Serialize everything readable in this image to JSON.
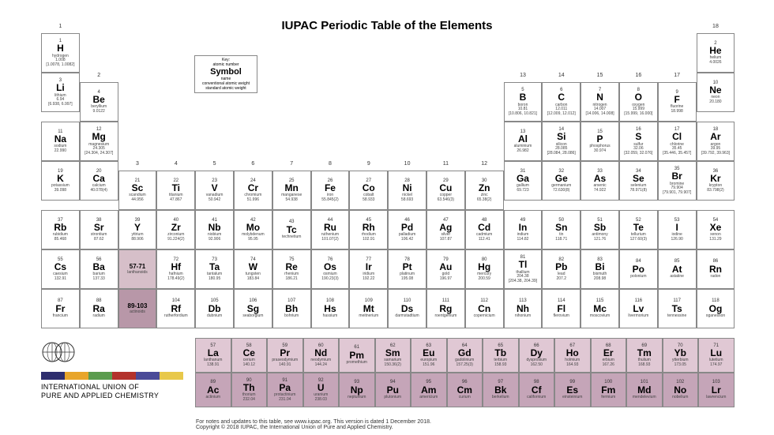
{
  "title": "IUPAC Periodic Table of the Elements",
  "key": {
    "label": "Key:",
    "line1": "atomic number",
    "symbol": "Symbol",
    "line2": "name",
    "line3": "conventional atomic weight",
    "line4": "standard atomic weight"
  },
  "palette": {
    "lan": "#d6bfc9",
    "act": "#b897a8",
    "lanrow": "#e0c8d4",
    "actrow": "#c5a5b8",
    "border": "#888888",
    "bg": "#ffffff"
  },
  "logoColors": [
    "#2e2e6e",
    "#e8a52a",
    "#5b9b4e",
    "#b3322c",
    "#4a4a98",
    "#e8c84a"
  ],
  "orgName1": "INTERNATIONAL UNION OF",
  "orgName2": "PURE AND APPLIED CHEMISTRY",
  "footer1": "For notes and updates to this table, see www.iupac.org. This version is dated 1 December 2018.",
  "footer2": "Copyright © 2018 IUPAC, the International Union of Pure and Applied Chemistry.",
  "groups": [
    1,
    2,
    3,
    4,
    5,
    6,
    7,
    8,
    9,
    10,
    11,
    12,
    13,
    14,
    15,
    16,
    17,
    18
  ],
  "elements": [
    {
      "n": 1,
      "s": "H",
      "name": "hydrogen",
      "m": "1.008",
      "m2": "[1.0078, 1.0082]",
      "r": 0,
      "c": 0
    },
    {
      "n": 2,
      "s": "He",
      "name": "helium",
      "m": "4.0026",
      "r": 0,
      "c": 17
    },
    {
      "n": 3,
      "s": "Li",
      "name": "lithium",
      "m": "6.94",
      "m2": "[6.938, 6.997]",
      "r": 1,
      "c": 0
    },
    {
      "n": 4,
      "s": "Be",
      "name": "beryllium",
      "m": "9.0122",
      "r": 1,
      "c": 1
    },
    {
      "n": 5,
      "s": "B",
      "name": "boron",
      "m": "10.81",
      "m2": "[10.806, 10.821]",
      "r": 1,
      "c": 12
    },
    {
      "n": 6,
      "s": "C",
      "name": "carbon",
      "m": "12.011",
      "m2": "[12.009, 12.012]",
      "r": 1,
      "c": 13
    },
    {
      "n": 7,
      "s": "N",
      "name": "nitrogen",
      "m": "14.007",
      "m2": "[14.006, 14.008]",
      "r": 1,
      "c": 14
    },
    {
      "n": 8,
      "s": "O",
      "name": "oxygen",
      "m": "15.999",
      "m2": "[15.999, 16.000]",
      "r": 1,
      "c": 15
    },
    {
      "n": 9,
      "s": "F",
      "name": "fluorine",
      "m": "18.998",
      "r": 1,
      "c": 16
    },
    {
      "n": 10,
      "s": "Ne",
      "name": "neon",
      "m": "20.180",
      "r": 1,
      "c": 17
    },
    {
      "n": 11,
      "s": "Na",
      "name": "sodium",
      "m": "22.990",
      "r": 2,
      "c": 0
    },
    {
      "n": 12,
      "s": "Mg",
      "name": "magnesium",
      "m": "24.305",
      "m2": "[24.304, 24.307]",
      "r": 2,
      "c": 1
    },
    {
      "n": 13,
      "s": "Al",
      "name": "aluminium",
      "m": "26.982",
      "r": 2,
      "c": 12
    },
    {
      "n": 14,
      "s": "Si",
      "name": "silicon",
      "m": "28.085",
      "m2": "[28.084, 28.086]",
      "r": 2,
      "c": 13
    },
    {
      "n": 15,
      "s": "P",
      "name": "phosphorus",
      "m": "30.974",
      "r": 2,
      "c": 14
    },
    {
      "n": 16,
      "s": "S",
      "name": "sulfur",
      "m": "32.06",
      "m2": "[32.059, 32.076]",
      "r": 2,
      "c": 15
    },
    {
      "n": 17,
      "s": "Cl",
      "name": "chlorine",
      "m": "35.45",
      "m2": "[35.446, 35.457]",
      "r": 2,
      "c": 16
    },
    {
      "n": 18,
      "s": "Ar",
      "name": "argon",
      "m": "39.95",
      "m2": "[39.792, 39.963]",
      "r": 2,
      "c": 17
    },
    {
      "n": 19,
      "s": "K",
      "name": "potassium",
      "m": "39.098",
      "r": 3,
      "c": 0
    },
    {
      "n": 20,
      "s": "Ca",
      "name": "calcium",
      "m": "40.078(4)",
      "r": 3,
      "c": 1
    },
    {
      "n": 21,
      "s": "Sc",
      "name": "scandium",
      "m": "44.956",
      "r": 3,
      "c": 2
    },
    {
      "n": 22,
      "s": "Ti",
      "name": "titanium",
      "m": "47.867",
      "r": 3,
      "c": 3
    },
    {
      "n": 23,
      "s": "V",
      "name": "vanadium",
      "m": "50.942",
      "r": 3,
      "c": 4
    },
    {
      "n": 24,
      "s": "Cr",
      "name": "chromium",
      "m": "51.996",
      "r": 3,
      "c": 5
    },
    {
      "n": 25,
      "s": "Mn",
      "name": "manganese",
      "m": "54.938",
      "r": 3,
      "c": 6
    },
    {
      "n": 26,
      "s": "Fe",
      "name": "iron",
      "m": "55.845(2)",
      "r": 3,
      "c": 7
    },
    {
      "n": 27,
      "s": "Co",
      "name": "cobalt",
      "m": "58.933",
      "r": 3,
      "c": 8
    },
    {
      "n": 28,
      "s": "Ni",
      "name": "nickel",
      "m": "58.693",
      "r": 3,
      "c": 9
    },
    {
      "n": 29,
      "s": "Cu",
      "name": "copper",
      "m": "63.546(3)",
      "r": 3,
      "c": 10
    },
    {
      "n": 30,
      "s": "Zn",
      "name": "zinc",
      "m": "65.38(2)",
      "r": 3,
      "c": 11
    },
    {
      "n": 31,
      "s": "Ga",
      "name": "gallium",
      "m": "69.723",
      "r": 3,
      "c": 12
    },
    {
      "n": 32,
      "s": "Ge",
      "name": "germanium",
      "m": "72.630(8)",
      "r": 3,
      "c": 13
    },
    {
      "n": 33,
      "s": "As",
      "name": "arsenic",
      "m": "74.922",
      "r": 3,
      "c": 14
    },
    {
      "n": 34,
      "s": "Se",
      "name": "selenium",
      "m": "78.971(8)",
      "r": 3,
      "c": 15
    },
    {
      "n": 35,
      "s": "Br",
      "name": "bromine",
      "m": "79.904",
      "m2": "[79.901, 79.907]",
      "r": 3,
      "c": 16
    },
    {
      "n": 36,
      "s": "Kr",
      "name": "krypton",
      "m": "83.798(2)",
      "r": 3,
      "c": 17
    },
    {
      "n": 37,
      "s": "Rb",
      "name": "rubidium",
      "m": "85.468",
      "r": 4,
      "c": 0
    },
    {
      "n": 38,
      "s": "Sr",
      "name": "strontium",
      "m": "87.62",
      "r": 4,
      "c": 1
    },
    {
      "n": 39,
      "s": "Y",
      "name": "yttrium",
      "m": "88.906",
      "r": 4,
      "c": 2
    },
    {
      "n": 40,
      "s": "Zr",
      "name": "zirconium",
      "m": "91.224(2)",
      "r": 4,
      "c": 3
    },
    {
      "n": 41,
      "s": "Nb",
      "name": "niobium",
      "m": "92.906",
      "r": 4,
      "c": 4
    },
    {
      "n": 42,
      "s": "Mo",
      "name": "molybdenum",
      "m": "95.95",
      "r": 4,
      "c": 5
    },
    {
      "n": 43,
      "s": "Tc",
      "name": "technetium",
      "m": "",
      "r": 4,
      "c": 6
    },
    {
      "n": 44,
      "s": "Ru",
      "name": "ruthenium",
      "m": "101.07(2)",
      "r": 4,
      "c": 7
    },
    {
      "n": 45,
      "s": "Rh",
      "name": "rhodium",
      "m": "102.91",
      "r": 4,
      "c": 8
    },
    {
      "n": 46,
      "s": "Pd",
      "name": "palladium",
      "m": "106.42",
      "r": 4,
      "c": 9
    },
    {
      "n": 47,
      "s": "Ag",
      "name": "silver",
      "m": "107.87",
      "r": 4,
      "c": 10
    },
    {
      "n": 48,
      "s": "Cd",
      "name": "cadmium",
      "m": "112.41",
      "r": 4,
      "c": 11
    },
    {
      "n": 49,
      "s": "In",
      "name": "indium",
      "m": "114.82",
      "r": 4,
      "c": 12
    },
    {
      "n": 50,
      "s": "Sn",
      "name": "tin",
      "m": "118.71",
      "r": 4,
      "c": 13
    },
    {
      "n": 51,
      "s": "Sb",
      "name": "antimony",
      "m": "121.76",
      "r": 4,
      "c": 14
    },
    {
      "n": 52,
      "s": "Te",
      "name": "tellurium",
      "m": "127.60(3)",
      "r": 4,
      "c": 15
    },
    {
      "n": 53,
      "s": "I",
      "name": "iodine",
      "m": "126.90",
      "r": 4,
      "c": 16
    },
    {
      "n": 54,
      "s": "Xe",
      "name": "xenon",
      "m": "131.29",
      "r": 4,
      "c": 17
    },
    {
      "n": 55,
      "s": "Cs",
      "name": "caesium",
      "m": "132.91",
      "r": 5,
      "c": 0
    },
    {
      "n": 56,
      "s": "Ba",
      "name": "barium",
      "m": "137.33",
      "r": 5,
      "c": 1
    },
    {
      "n": 0,
      "s": "57-71",
      "name": "lanthanoids",
      "m": "",
      "r": 5,
      "c": 2,
      "cls": "lan"
    },
    {
      "n": 72,
      "s": "Hf",
      "name": "hafnium",
      "m": "178.49(2)",
      "r": 5,
      "c": 3
    },
    {
      "n": 73,
      "s": "Ta",
      "name": "tantalum",
      "m": "180.95",
      "r": 5,
      "c": 4
    },
    {
      "n": 74,
      "s": "W",
      "name": "tungsten",
      "m": "183.84",
      "r": 5,
      "c": 5
    },
    {
      "n": 75,
      "s": "Re",
      "name": "rhenium",
      "m": "186.21",
      "r": 5,
      "c": 6
    },
    {
      "n": 76,
      "s": "Os",
      "name": "osmium",
      "m": "190.23(3)",
      "r": 5,
      "c": 7
    },
    {
      "n": 77,
      "s": "Ir",
      "name": "iridium",
      "m": "192.22",
      "r": 5,
      "c": 8
    },
    {
      "n": 78,
      "s": "Pt",
      "name": "platinum",
      "m": "195.08",
      "r": 5,
      "c": 9
    },
    {
      "n": 79,
      "s": "Au",
      "name": "gold",
      "m": "196.97",
      "r": 5,
      "c": 10
    },
    {
      "n": 80,
      "s": "Hg",
      "name": "mercury",
      "m": "200.59",
      "r": 5,
      "c": 11
    },
    {
      "n": 81,
      "s": "Tl",
      "name": "thallium",
      "m": "204.38",
      "m2": "[204.38, 204.39]",
      "r": 5,
      "c": 12
    },
    {
      "n": 82,
      "s": "Pb",
      "name": "lead",
      "m": "207.2",
      "r": 5,
      "c": 13
    },
    {
      "n": 83,
      "s": "Bi",
      "name": "bismuth",
      "m": "208.98",
      "r": 5,
      "c": 14
    },
    {
      "n": 84,
      "s": "Po",
      "name": "polonium",
      "m": "",
      "r": 5,
      "c": 15
    },
    {
      "n": 85,
      "s": "At",
      "name": "astatine",
      "m": "",
      "r": 5,
      "c": 16
    },
    {
      "n": 86,
      "s": "Rn",
      "name": "radon",
      "m": "",
      "r": 5,
      "c": 17
    },
    {
      "n": 87,
      "s": "Fr",
      "name": "francium",
      "m": "",
      "r": 6,
      "c": 0
    },
    {
      "n": 88,
      "s": "Ra",
      "name": "radium",
      "m": "",
      "r": 6,
      "c": 1
    },
    {
      "n": 0,
      "s": "89-103",
      "name": "actinoids",
      "m": "",
      "r": 6,
      "c": 2,
      "cls": "act"
    },
    {
      "n": 104,
      "s": "Rf",
      "name": "rutherfordium",
      "m": "",
      "r": 6,
      "c": 3
    },
    {
      "n": 105,
      "s": "Db",
      "name": "dubnium",
      "m": "",
      "r": 6,
      "c": 4
    },
    {
      "n": 106,
      "s": "Sg",
      "name": "seaborgium",
      "m": "",
      "r": 6,
      "c": 5
    },
    {
      "n": 107,
      "s": "Bh",
      "name": "bohrium",
      "m": "",
      "r": 6,
      "c": 6
    },
    {
      "n": 108,
      "s": "Hs",
      "name": "hassium",
      "m": "",
      "r": 6,
      "c": 7
    },
    {
      "n": 109,
      "s": "Mt",
      "name": "meitnerium",
      "m": "",
      "r": 6,
      "c": 8
    },
    {
      "n": 110,
      "s": "Ds",
      "name": "darmstadtium",
      "m": "",
      "r": 6,
      "c": 9
    },
    {
      "n": 111,
      "s": "Rg",
      "name": "roentgenium",
      "m": "",
      "r": 6,
      "c": 10
    },
    {
      "n": 112,
      "s": "Cn",
      "name": "copernicium",
      "m": "",
      "r": 6,
      "c": 11
    },
    {
      "n": 113,
      "s": "Nh",
      "name": "nihonium",
      "m": "",
      "r": 6,
      "c": 12
    },
    {
      "n": 114,
      "s": "Fl",
      "name": "flerovium",
      "m": "",
      "r": 6,
      "c": 13
    },
    {
      "n": 115,
      "s": "Mc",
      "name": "moscovium",
      "m": "",
      "r": 6,
      "c": 14
    },
    {
      "n": 116,
      "s": "Lv",
      "name": "livermorium",
      "m": "",
      "r": 6,
      "c": 15
    },
    {
      "n": 117,
      "s": "Ts",
      "name": "tennessine",
      "m": "",
      "r": 6,
      "c": 16
    },
    {
      "n": 118,
      "s": "Og",
      "name": "oganesson",
      "m": "",
      "r": 6,
      "c": 17
    }
  ],
  "lanthanoids": [
    {
      "n": 57,
      "s": "La",
      "name": "lanthanum",
      "m": "138.91"
    },
    {
      "n": 58,
      "s": "Ce",
      "name": "cerium",
      "m": "140.12"
    },
    {
      "n": 59,
      "s": "Pr",
      "name": "praseodymium",
      "m": "140.91"
    },
    {
      "n": 60,
      "s": "Nd",
      "name": "neodymium",
      "m": "144.24"
    },
    {
      "n": 61,
      "s": "Pm",
      "name": "promethium",
      "m": ""
    },
    {
      "n": 62,
      "s": "Sm",
      "name": "samarium",
      "m": "150.36(2)"
    },
    {
      "n": 63,
      "s": "Eu",
      "name": "europium",
      "m": "151.96"
    },
    {
      "n": 64,
      "s": "Gd",
      "name": "gadolinium",
      "m": "157.25(3)"
    },
    {
      "n": 65,
      "s": "Tb",
      "name": "terbium",
      "m": "158.93"
    },
    {
      "n": 66,
      "s": "Dy",
      "name": "dysprosium",
      "m": "162.50"
    },
    {
      "n": 67,
      "s": "Ho",
      "name": "holmium",
      "m": "164.93"
    },
    {
      "n": 68,
      "s": "Er",
      "name": "erbium",
      "m": "167.26"
    },
    {
      "n": 69,
      "s": "Tm",
      "name": "thulium",
      "m": "168.93"
    },
    {
      "n": 70,
      "s": "Yb",
      "name": "ytterbium",
      "m": "173.05"
    },
    {
      "n": 71,
      "s": "Lu",
      "name": "lutetium",
      "m": "174.97"
    }
  ],
  "actinoids": [
    {
      "n": 89,
      "s": "Ac",
      "name": "actinium",
      "m": ""
    },
    {
      "n": 90,
      "s": "Th",
      "name": "thorium",
      "m": "232.04"
    },
    {
      "n": 91,
      "s": "Pa",
      "name": "protactinium",
      "m": "231.04"
    },
    {
      "n": 92,
      "s": "U",
      "name": "uranium",
      "m": "238.03"
    },
    {
      "n": 93,
      "s": "Np",
      "name": "neptunium",
      "m": ""
    },
    {
      "n": 94,
      "s": "Pu",
      "name": "plutonium",
      "m": ""
    },
    {
      "n": 95,
      "s": "Am",
      "name": "americium",
      "m": ""
    },
    {
      "n": 96,
      "s": "Cm",
      "name": "curium",
      "m": ""
    },
    {
      "n": 97,
      "s": "Bk",
      "name": "berkelium",
      "m": ""
    },
    {
      "n": 98,
      "s": "Cf",
      "name": "californium",
      "m": ""
    },
    {
      "n": 99,
      "s": "Es",
      "name": "einsteinium",
      "m": ""
    },
    {
      "n": 100,
      "s": "Fm",
      "name": "fermium",
      "m": ""
    },
    {
      "n": 101,
      "s": "Md",
      "name": "mendelevium",
      "m": ""
    },
    {
      "n": 102,
      "s": "No",
      "name": "nobelium",
      "m": ""
    },
    {
      "n": 103,
      "s": "Lr",
      "name": "lawrencium",
      "m": ""
    }
  ]
}
